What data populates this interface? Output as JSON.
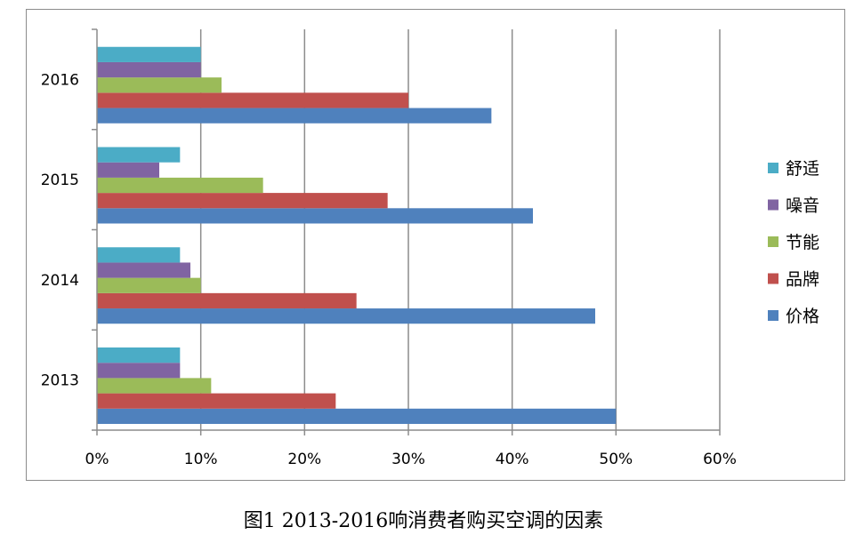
{
  "chart_data": {
    "type": "bar",
    "orientation": "horizontal",
    "categories": [
      "2013",
      "2014",
      "2015",
      "2016"
    ],
    "series": [
      {
        "name": "价格",
        "color": "#4f81bd",
        "values": [
          50,
          48,
          42,
          38
        ]
      },
      {
        "name": "品牌",
        "color": "#c0504d",
        "values": [
          23,
          25,
          28,
          30
        ]
      },
      {
        "name": "节能",
        "color": "#9bbb59",
        "values": [
          11,
          10,
          16,
          12
        ]
      },
      {
        "name": "噪音",
        "color": "#8064a2",
        "values": [
          8,
          9,
          6,
          10
        ]
      },
      {
        "name": "舒适",
        "color": "#4bacc6",
        "values": [
          8,
          8,
          8,
          10
        ]
      }
    ],
    "xlim": [
      0,
      60
    ],
    "x_ticks": [
      "0%",
      "10%",
      "20%",
      "30%",
      "40%",
      "50%",
      "60%"
    ],
    "unit": "%",
    "grid": true,
    "legend_position": "right",
    "legend_order": [
      "舒适",
      "噪音",
      "节能",
      "品牌",
      "价格"
    ]
  },
  "caption": "图1   2013-2016响消费者购买空调的因素"
}
